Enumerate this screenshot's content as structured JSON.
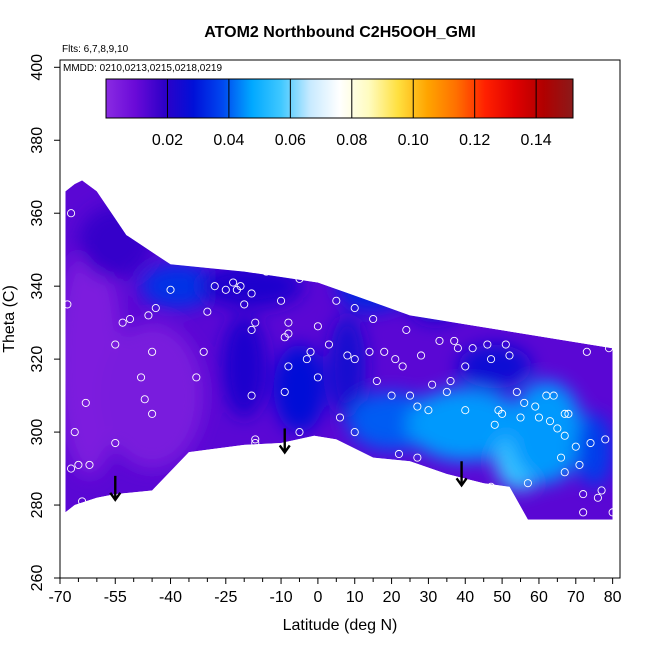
{
  "chart_data": {
    "type": "heatmap",
    "title": "ATOM2 Northbound C2H5OOH_GMI",
    "annotations": [
      "Flts: 6,7,8,9,10",
      "MMDD: 0210,0213,0215,0218,0219"
    ],
    "xlabel": "Latitude (deg N)",
    "ylabel": "Theta (C)",
    "xlim": [
      -70,
      82
    ],
    "ylim": [
      260,
      402
    ],
    "x_ticks": [
      -70,
      -55,
      -40,
      -25,
      -10,
      0,
      10,
      20,
      30,
      40,
      50,
      60,
      70,
      80
    ],
    "x_tick_labels": [
      "-70",
      "-55",
      "-40",
      "-25",
      "-10",
      "0",
      "10",
      "20",
      "30",
      "40",
      "50",
      "60",
      "70",
      "80"
    ],
    "y_ticks": [
      260,
      280,
      300,
      320,
      340,
      360,
      380,
      400
    ],
    "y_tick_labels": [
      "260",
      "280",
      "300",
      "320",
      "340",
      "360",
      "380",
      "400"
    ],
    "colorbar": {
      "range": [
        0,
        0.152
      ],
      "ticks": [
        0.02,
        0.04,
        0.06,
        0.08,
        0.1,
        0.12,
        0.14
      ],
      "tick_labels": [
        "0.02",
        "0.04",
        "0.06",
        "0.08",
        "0.10",
        "0.12",
        "0.14"
      ],
      "colors": [
        "#8a2be2",
        "#6a0ad8",
        "#2e00c8",
        "#0010d8",
        "#0048f0",
        "#00a8ff",
        "#40c8ff",
        "#c8eaff",
        "#ffffff",
        "#fffcc0",
        "#ffe040",
        "#ffa500",
        "#ff7000",
        "#ff2000",
        "#e00000",
        "#b00000",
        "#8b1a1a"
      ]
    },
    "field_region": [
      [
        -68.5,
        278
      ],
      [
        -66,
        280
      ],
      [
        -60,
        282
      ],
      [
        -55,
        283
      ],
      [
        -45,
        284
      ],
      [
        -35,
        294.5
      ],
      [
        -20,
        296.5
      ],
      [
        -10,
        297
      ],
      [
        -1,
        299
      ],
      [
        5,
        298
      ],
      [
        15,
        293
      ],
      [
        25,
        292
      ],
      [
        35,
        288.5
      ],
      [
        45,
        286
      ],
      [
        52,
        285
      ],
      [
        57,
        276
      ],
      [
        80,
        276
      ],
      [
        80,
        323
      ],
      [
        25,
        332
      ],
      [
        0,
        341
      ],
      [
        -20,
        344
      ],
      [
        -40,
        346
      ],
      [
        -52,
        354
      ],
      [
        -60,
        366
      ],
      [
        -64,
        369
      ],
      [
        -66,
        368
      ],
      [
        -68.5,
        366
      ]
    ],
    "blobs": [
      {
        "x": -62,
        "y": 320,
        "rx": 9,
        "ry": 32,
        "level": 0.004
      },
      {
        "x": -45,
        "y": 310,
        "rx": 14,
        "ry": 20,
        "level": 0.005
      },
      {
        "x": -55,
        "y": 352,
        "rx": 10,
        "ry": 10,
        "level": 0.018
      },
      {
        "x": -38,
        "y": 340,
        "rx": 10,
        "ry": 6,
        "level": 0.034
      },
      {
        "x": -18,
        "y": 340,
        "rx": 14,
        "ry": 6,
        "level": 0.022
      },
      {
        "x": -20,
        "y": 318,
        "rx": 6,
        "ry": 14,
        "level": 0.022
      },
      {
        "x": -5,
        "y": 312,
        "rx": 7,
        "ry": 12,
        "level": 0.028
      },
      {
        "x": 8,
        "y": 318,
        "rx": 5,
        "ry": 14,
        "level": 0.024
      },
      {
        "x": 15,
        "y": 340,
        "rx": 10,
        "ry": 7,
        "level": 0.032
      },
      {
        "x": 32,
        "y": 336,
        "rx": 8,
        "ry": 6,
        "level": 0.024
      },
      {
        "x": 20,
        "y": 303,
        "rx": 12,
        "ry": 8,
        "level": 0.04
      },
      {
        "x": 40,
        "y": 302,
        "rx": 16,
        "ry": 10,
        "level": 0.046
      },
      {
        "x": 55,
        "y": 292,
        "rx": 7,
        "ry": 8,
        "level": 0.056
      },
      {
        "x": 62,
        "y": 300,
        "rx": 10,
        "ry": 14,
        "level": 0.046
      },
      {
        "x": 75,
        "y": 295,
        "rx": 5,
        "ry": 10,
        "level": 0.036
      },
      {
        "x": 48,
        "y": 318,
        "rx": 10,
        "ry": 6,
        "level": 0.026
      }
    ],
    "points": [
      [
        -68,
        335
      ],
      [
        -67,
        360
      ],
      [
        -66,
        300
      ],
      [
        -67,
        290
      ],
      [
        -65,
        291
      ],
      [
        -62,
        291
      ],
      [
        -63,
        308
      ],
      [
        -64,
        281
      ],
      [
        -55,
        324
      ],
      [
        -53,
        330
      ],
      [
        -51,
        331
      ],
      [
        -48,
        315
      ],
      [
        -46,
        332
      ],
      [
        -47,
        309
      ],
      [
        -45,
        322
      ],
      [
        -44,
        334
      ],
      [
        -45,
        305
      ],
      [
        -55,
        297
      ],
      [
        -40,
        339
      ],
      [
        -33,
        315
      ],
      [
        -31,
        322
      ],
      [
        -30,
        333
      ],
      [
        -28,
        340
      ],
      [
        -25,
        339
      ],
      [
        -23,
        341
      ],
      [
        -22,
        339
      ],
      [
        -21,
        340
      ],
      [
        -20,
        335
      ],
      [
        -18,
        338
      ],
      [
        -18,
        328
      ],
      [
        -17,
        330
      ],
      [
        -18,
        310
      ],
      [
        -17,
        298
      ],
      [
        -17,
        297
      ],
      [
        -14,
        344
      ],
      [
        -12,
        345
      ],
      [
        -10,
        348
      ],
      [
        -10,
        336
      ],
      [
        -8,
        330
      ],
      [
        -9,
        326
      ],
      [
        -8,
        327
      ],
      [
        -8,
        318
      ],
      [
        -9,
        311
      ],
      [
        -5,
        342
      ],
      [
        -5,
        300
      ],
      [
        -3,
        320
      ],
      [
        -2,
        322
      ],
      [
        0,
        329
      ],
      [
        0,
        315
      ],
      [
        2,
        345
      ],
      [
        3,
        324
      ],
      [
        5,
        336
      ],
      [
        6,
        304
      ],
      [
        7,
        344
      ],
      [
        8,
        321
      ],
      [
        10,
        320
      ],
      [
        10,
        334
      ],
      [
        10,
        300
      ],
      [
        12,
        340
      ],
      [
        13,
        343
      ],
      [
        14,
        322
      ],
      [
        15,
        331
      ],
      [
        16,
        314
      ],
      [
        17,
        342
      ],
      [
        18,
        322
      ],
      [
        20,
        310
      ],
      [
        21,
        320
      ],
      [
        22,
        294
      ],
      [
        23,
        318
      ],
      [
        24,
        328
      ],
      [
        25,
        310
      ],
      [
        27,
        307
      ],
      [
        27,
        293
      ],
      [
        28,
        321
      ],
      [
        30,
        306
      ],
      [
        31,
        313
      ],
      [
        32,
        339
      ],
      [
        33,
        325
      ],
      [
        35,
        311
      ],
      [
        36,
        314
      ],
      [
        37,
        325
      ],
      [
        38,
        323
      ],
      [
        40,
        318
      ],
      [
        40,
        306
      ],
      [
        42,
        323
      ],
      [
        44,
        341
      ],
      [
        46,
        324
      ],
      [
        47,
        320
      ],
      [
        47,
        285
      ],
      [
        48,
        302
      ],
      [
        49,
        306
      ],
      [
        50,
        305
      ],
      [
        51,
        324
      ],
      [
        52,
        321
      ],
      [
        54,
        311
      ],
      [
        55,
        304
      ],
      [
        56,
        308
      ],
      [
        57,
        286
      ],
      [
        59,
        307
      ],
      [
        60,
        304
      ],
      [
        62,
        310
      ],
      [
        63,
        303
      ],
      [
        64,
        310
      ],
      [
        65,
        301
      ],
      [
        66,
        293
      ],
      [
        67,
        305
      ],
      [
        68,
        305
      ],
      [
        67,
        299
      ],
      [
        67,
        289
      ],
      [
        70,
        296
      ],
      [
        71,
        291
      ],
      [
        72,
        278
      ],
      [
        72,
        283
      ],
      [
        73,
        322
      ],
      [
        74,
        297
      ],
      [
        76,
        282
      ],
      [
        77,
        284
      ],
      [
        78,
        298
      ],
      [
        79,
        323
      ],
      [
        80,
        278
      ]
    ],
    "arrows": [
      [
        -55,
        288
      ],
      [
        -9,
        301
      ],
      [
        39,
        292
      ]
    ]
  }
}
